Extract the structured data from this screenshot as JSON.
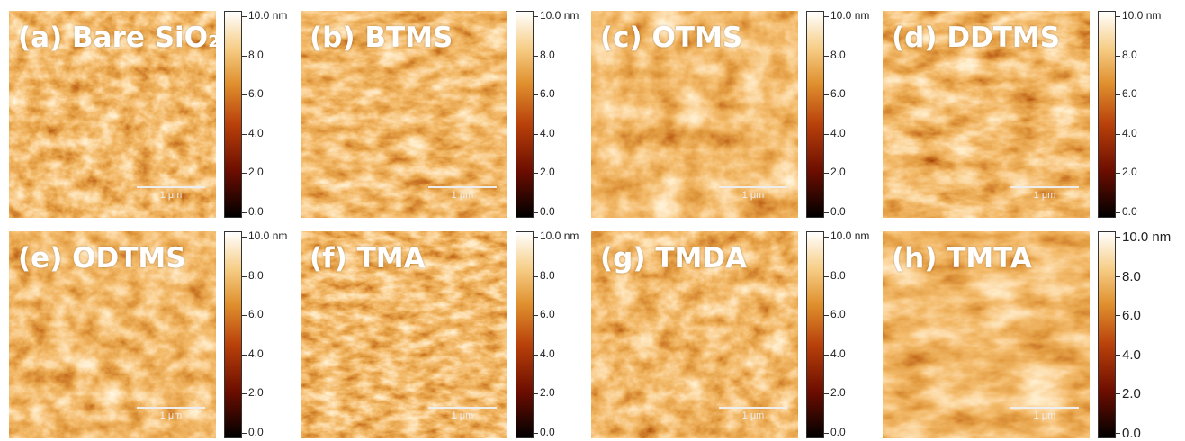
{
  "panels": [
    {
      "label": "(a) Bare SiO₂",
      "scale_bar": "1 μm"
    },
    {
      "label": "(b) BTMS",
      "scale_bar": "1 μm"
    },
    {
      "label": "(c) OTMS",
      "scale_bar": "1 μm"
    },
    {
      "label": "(d) DDTMS",
      "scale_bar": "1 μm"
    },
    {
      "label": "(e) ODTMS",
      "scale_bar": "1 μm"
    },
    {
      "label": "(f) TMA",
      "scale_bar": "1 μm"
    },
    {
      "label": "(g) TMDA",
      "scale_bar": "1 μm"
    },
    {
      "label": "(h) TMTA",
      "scale_bar": "1 μm"
    }
  ],
  "colorbar": {
    "ticks": [
      "10.0 nm",
      "8.0",
      "6.0",
      "4.0",
      "2.0",
      "0.0"
    ]
  }
}
